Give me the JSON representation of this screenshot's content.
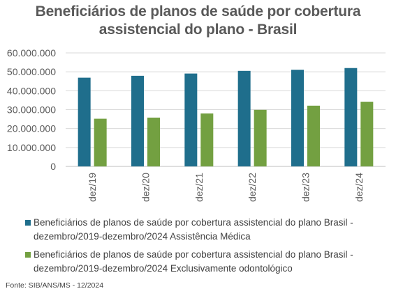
{
  "chart_data": {
    "type": "bar",
    "title_lines": [
      "Beneficiários de planos de saúde por cobertura",
      "assistencial do plano - Brasil"
    ],
    "categories": [
      "dez/19",
      "dez/20",
      "dez/21",
      "dez/22",
      "dez/23",
      "dez/24"
    ],
    "series": [
      {
        "name": "Beneficiários de planos de saúde por cobertura assistencial do plano Brasil - dezembro/2019-dezembro/2024 Assistência Médica",
        "color": "#1F6E8C",
        "values": [
          46900000,
          47900000,
          49100000,
          50500000,
          51100000,
          52000000
        ]
      },
      {
        "name": "Beneficiários de planos de saúde por cobertura assistencial do plano Brasil - dezembro/2019-dezembro/2024 Exclusivamente odontológico",
        "color": "#73A041",
        "values": [
          25200000,
          25800000,
          28000000,
          29900000,
          32100000,
          34200000
        ]
      }
    ],
    "yticks": [
      "0",
      "10.000.000",
      "20.000.000",
      "30.000.000",
      "40.000.000",
      "50.000.000",
      "60.000.000"
    ],
    "ylim": [
      0,
      60000000
    ],
    "grid": true,
    "legend_position": "bottom"
  },
  "legend": {
    "item1_line1": "Beneficiários de planos de saúde por cobertura assistencial do plano Brasil -",
    "item1_line2": "dezembro/2019-dezembro/2024 Assistência Médica",
    "item2_line1": "Beneficiários de planos de saúde por cobertura assistencial do plano Brasil -",
    "item2_line2": "dezembro/2019-dezembro/2024 Exclusivamente odontológico"
  },
  "source": "Fonte: SIB/ANS/MS - 12/2024"
}
